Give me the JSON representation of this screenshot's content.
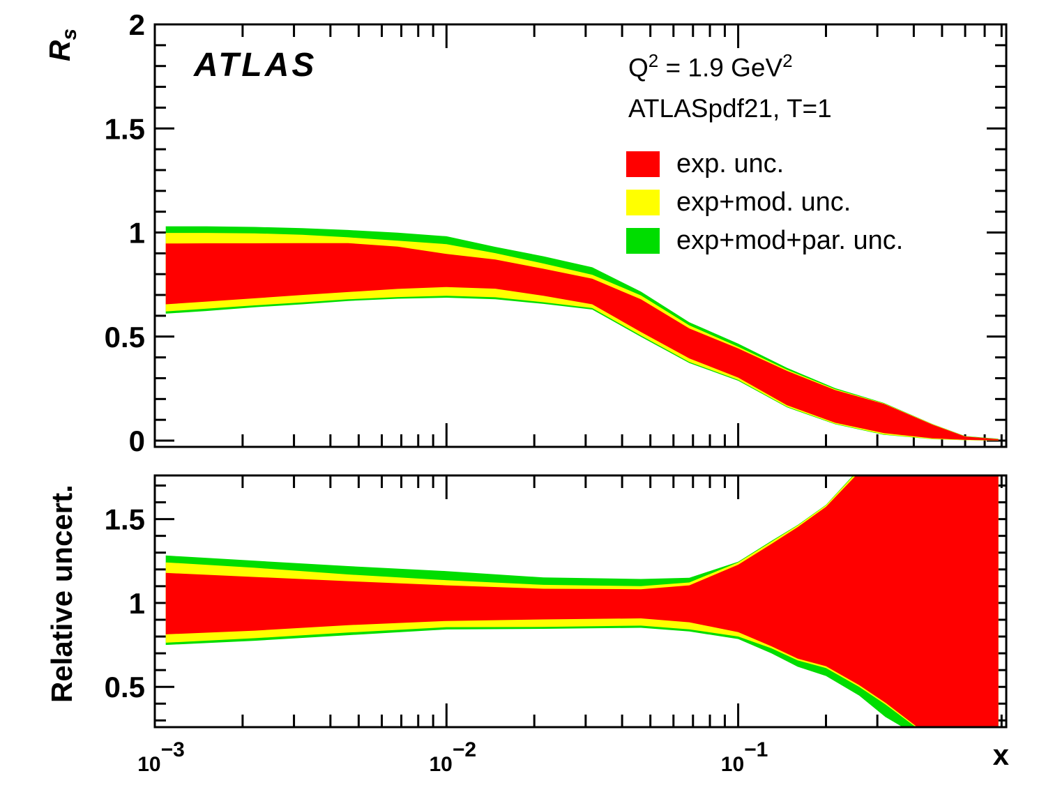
{
  "branding": {
    "experiment": "ATLAS"
  },
  "annotations": {
    "q2": {
      "base": "Q",
      "exp": "2",
      "rest": " = 1.9 GeV",
      "exp2": "2"
    },
    "pdf_set": "ATLASpdf21, T=1"
  },
  "legend": {
    "items": [
      {
        "label": "exp. unc.",
        "color": "#FF0000"
      },
      {
        "label": "exp+mod. unc.",
        "color": "#FFFF00"
      },
      {
        "label": "exp+mod+par. unc.",
        "color": "#00DD00"
      }
    ]
  },
  "axis_titles": {
    "y_top_base": "R",
    "y_top_sub": "s",
    "y_bottom": "Relative uncert.",
    "x": "x"
  },
  "chart_data": [
    {
      "type": "area",
      "panel": "rs",
      "title": "Rs strange-quark ratio vs x, uncertainty bands",
      "x_log": true,
      "xlim": [
        0.001,
        0.83
      ],
      "ylim": [
        -0.03,
        2.0
      ],
      "y_major_ticks": [
        0,
        0.5,
        1,
        1.5,
        2
      ],
      "y_tick_labels": [
        "0",
        "0.5",
        "1",
        "1.5",
        "2"
      ],
      "x_major_ticks": [
        0.001,
        0.01,
        0.1
      ],
      "x_tick_labels": null,
      "x": [
        0.00109,
        0.0015,
        0.0022,
        0.0032,
        0.0046,
        0.0068,
        0.01,
        0.0147,
        0.0215,
        0.0316,
        0.0464,
        0.068,
        0.1,
        0.147,
        0.215,
        0.316,
        0.464,
        0.6,
        0.78
      ],
      "series": [
        {
          "name": "exp+mod+par. unc.",
          "color": "#00DD00",
          "hi": [
            1.03,
            1.03,
            1.027,
            1.021,
            1.012,
            0.999,
            0.982,
            0.931,
            0.886,
            0.833,
            0.716,
            0.569,
            0.466,
            0.35,
            0.252,
            0.181,
            0.08,
            0.022,
            0.009
          ],
          "lo": [
            0.61,
            0.623,
            0.641,
            0.655,
            0.671,
            0.682,
            0.687,
            0.679,
            0.657,
            0.63,
            0.499,
            0.373,
            0.288,
            0.16,
            0.079,
            0.028,
            0.007,
            0.002,
            0.0
          ]
        },
        {
          "name": "exp+mod. unc.",
          "color": "#FFFF00",
          "hi": [
            0.998,
            0.998,
            0.996,
            0.989,
            0.977,
            0.961,
            0.944,
            0.901,
            0.851,
            0.797,
            0.698,
            0.554,
            0.451,
            0.341,
            0.247,
            0.179,
            0.079,
            0.021,
            0.008
          ],
          "lo": [
            0.621,
            0.634,
            0.65,
            0.664,
            0.679,
            0.69,
            0.696,
            0.689,
            0.665,
            0.637,
            0.505,
            0.378,
            0.292,
            0.163,
            0.081,
            0.03,
            0.008,
            0.002,
            0.0
          ]
        },
        {
          "name": "exp. unc.",
          "color": "#FF0000",
          "hi": [
            0.947,
            0.948,
            0.948,
            0.949,
            0.949,
            0.932,
            0.897,
            0.87,
            0.826,
            0.778,
            0.679,
            0.539,
            0.443,
            0.335,
            0.243,
            0.177,
            0.077,
            0.02,
            0.007
          ],
          "lo": [
            0.655,
            0.668,
            0.684,
            0.7,
            0.714,
            0.729,
            0.738,
            0.73,
            0.696,
            0.655,
            0.522,
            0.395,
            0.303,
            0.17,
            0.086,
            0.036,
            0.011,
            0.004,
            0.001
          ]
        }
      ]
    },
    {
      "type": "area",
      "panel": "relative-uncertainty",
      "title": "Relative uncertainty vs x",
      "x_log": true,
      "xlim": [
        0.001,
        0.83
      ],
      "ylim": [
        0.26,
        1.76
      ],
      "y_major_ticks": [
        0.5,
        1,
        1.5
      ],
      "y_tick_labels": [
        "0.5",
        "1",
        "1.5"
      ],
      "x_major_ticks": [
        0.001,
        0.01,
        0.1
      ],
      "x_tick_labels": [
        {
          "base": "10",
          "exp": "−3"
        },
        {
          "base": "10",
          "exp": "−2"
        },
        {
          "base": "10",
          "exp": "−1"
        }
      ],
      "x": [
        0.00109,
        0.0022,
        0.0046,
        0.01,
        0.0215,
        0.0464,
        0.068,
        0.1,
        0.13,
        0.16,
        0.2,
        0.26,
        0.32,
        0.41,
        0.5,
        0.78
      ],
      "series": [
        {
          "name": "exp+mod+par. unc.",
          "color": "#00DD00",
          "hi": [
            1.283,
            1.252,
            1.22,
            1.19,
            1.152,
            1.143,
            1.15,
            1.246,
            1.37,
            1.465,
            1.585,
            1.8,
            1.9,
            1.9,
            1.9,
            1.9
          ],
          "lo": [
            0.75,
            0.775,
            0.808,
            0.842,
            0.846,
            0.852,
            0.83,
            0.785,
            0.7,
            0.62,
            0.565,
            0.448,
            0.32,
            0.21,
            0.2,
            0.2
          ]
        },
        {
          "name": "exp+mod. unc.",
          "color": "#FFFF00",
          "hi": [
            1.242,
            1.21,
            1.17,
            1.136,
            1.108,
            1.1,
            1.122,
            1.242,
            1.365,
            1.462,
            1.582,
            1.795,
            1.9,
            1.9,
            1.9,
            1.9
          ],
          "lo": [
            0.763,
            0.79,
            0.824,
            0.856,
            0.857,
            0.865,
            0.843,
            0.8,
            0.73,
            0.658,
            0.612,
            0.5,
            0.395,
            0.255,
            0.205,
            0.205
          ]
        },
        {
          "name": "exp. unc.",
          "color": "#FF0000",
          "hi": [
            1.179,
            1.155,
            1.13,
            1.105,
            1.085,
            1.082,
            1.105,
            1.228,
            1.352,
            1.452,
            1.573,
            1.78,
            1.9,
            1.9,
            1.9,
            1.9
          ],
          "lo": [
            0.813,
            0.835,
            0.868,
            0.893,
            0.902,
            0.908,
            0.885,
            0.826,
            0.742,
            0.668,
            0.623,
            0.51,
            0.405,
            0.262,
            0.215,
            0.215
          ]
        }
      ]
    }
  ]
}
